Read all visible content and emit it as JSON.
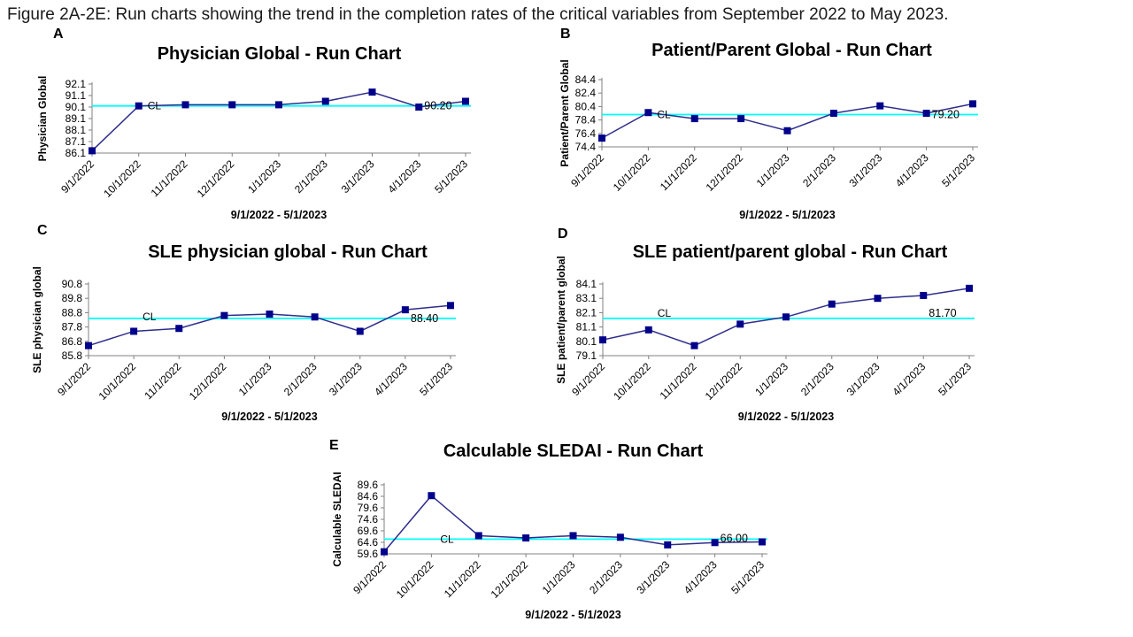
{
  "figure_title": "Figure 2A-2E: Run charts showing the trend in the completion rates of the critical variables from September 2022 to May 2023.",
  "colors": {
    "series_line": "#2E2E8C",
    "marker": "#00008B",
    "center_line": "#00FFFF",
    "axis": "#808080",
    "text": "#000000"
  },
  "chart_data": [
    {
      "type": "line",
      "panel": "A",
      "title": "Physician Global - Run Chart",
      "ylabel": "Physician  Global",
      "xlabel": "9/1/2022 - 5/1/2023",
      "categories": [
        "9/1/2022",
        "10/1/2022",
        "11/1/2022",
        "12/1/2022",
        "1/1/2023",
        "2/1/2023",
        "3/1/2023",
        "4/1/2023",
        "5/1/2023"
      ],
      "values": [
        86.3,
        90.2,
        90.3,
        90.3,
        90.3,
        90.6,
        91.4,
        90.1,
        90.6
      ],
      "center_line": {
        "label": "CL",
        "value": 90.2,
        "value_label": "90.20"
      },
      "yticks": [
        86.1,
        87.1,
        88.1,
        89.1,
        90.1,
        91.1,
        92.1
      ],
      "ylim": [
        86.1,
        92.1
      ],
      "grid": false,
      "legend": "none"
    },
    {
      "type": "line",
      "panel": "B",
      "title": "Patient/Parent Global - Run Chart",
      "ylabel": "Patient/Parent Global",
      "xlabel": "9/1/2022 - 5/1/2023",
      "categories": [
        "9/1/2022",
        "10/1/2022",
        "11/1/2022",
        "12/1/2022",
        "1/1/2023",
        "2/1/2023",
        "3/1/2023",
        "4/1/2023",
        "5/1/2023"
      ],
      "values": [
        75.7,
        79.5,
        78.6,
        78.6,
        76.8,
        79.4,
        80.5,
        79.4,
        80.8
      ],
      "center_line": {
        "label": "CL",
        "value": 79.2,
        "value_label": "79.20"
      },
      "yticks": [
        74.4,
        76.4,
        78.4,
        80.4,
        82.4,
        84.4
      ],
      "ylim": [
        74.4,
        84.4
      ],
      "grid": false,
      "legend": "none"
    },
    {
      "type": "line",
      "panel": "C",
      "title": "SLE physician global - Run Chart",
      "ylabel": "SLE physician  global",
      "xlabel": "9/1/2022 - 5/1/2023",
      "categories": [
        "9/1/2022",
        "10/1/2022",
        "11/1/2022",
        "12/1/2022",
        "1/1/2023",
        "2/1/2023",
        "3/1/2023",
        "4/1/2023",
        "5/1/2023"
      ],
      "values": [
        86.5,
        87.5,
        87.7,
        88.6,
        88.7,
        88.5,
        87.5,
        89.0,
        89.3
      ],
      "center_line": {
        "label": "CL",
        "value": 88.4,
        "value_label": "88.40"
      },
      "yticks": [
        85.8,
        86.8,
        87.8,
        88.8,
        89.8,
        90.8
      ],
      "ylim": [
        85.8,
        90.8
      ],
      "grid": false,
      "legend": "none"
    },
    {
      "type": "line",
      "panel": "D",
      "title": "SLE patient/parent global - Run Chart",
      "ylabel": "SLE patient/parent global",
      "xlabel": "9/1/2022 - 5/1/2023",
      "categories": [
        "9/1/2022",
        "10/1/2022",
        "11/1/2022",
        "12/1/2022",
        "1/1/2023",
        "2/1/2023",
        "3/1/2023",
        "4/1/2023",
        "5/1/2023"
      ],
      "values": [
        80.2,
        80.9,
        79.8,
        81.3,
        81.8,
        82.7,
        83.1,
        83.3,
        83.8
      ],
      "center_line": {
        "label": "CL",
        "value": 81.7,
        "value_label": "81.70"
      },
      "yticks": [
        79.1,
        80.1,
        81.1,
        82.1,
        83.1,
        84.1
      ],
      "ylim": [
        79.1,
        84.1
      ],
      "grid": false,
      "legend": "none"
    },
    {
      "type": "line",
      "panel": "E",
      "title": "Calculable SLEDAI - Run Chart",
      "ylabel": "Calculable  SLEDAI",
      "xlabel": "9/1/2022 - 5/1/2023",
      "categories": [
        "9/1/2022",
        "10/1/2022",
        "11/1/2022",
        "12/1/2022",
        "1/1/2023",
        "2/1/2023",
        "3/1/2023",
        "4/1/2023",
        "5/1/2023"
      ],
      "values": [
        60.5,
        84.9,
        67.5,
        66.5,
        67.5,
        66.8,
        63.5,
        64.5,
        64.8
      ],
      "center_line": {
        "label": "CL",
        "value": 66.0,
        "value_label": "66.00"
      },
      "yticks": [
        59.6,
        64.6,
        69.6,
        74.6,
        79.6,
        84.6,
        89.6
      ],
      "ylim": [
        59.6,
        89.6
      ],
      "grid": false,
      "legend": "none"
    }
  ]
}
